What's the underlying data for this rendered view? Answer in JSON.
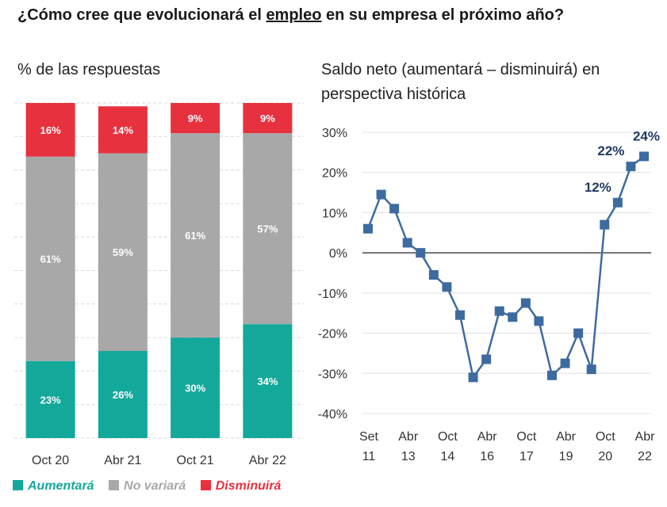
{
  "title": {
    "before": "¿Cómo cree que evolucionará el ",
    "underlined": "empleo",
    "after": " en su empresa el próximo año?"
  },
  "left_subtitle": "% de las respuestas",
  "right_subtitle_line1": "Saldo neto (aumentará – disminuirá) en",
  "right_subtitle_line2": "perspectiva histórica",
  "legend": [
    {
      "label": "Aumentará",
      "color": "#14a89a"
    },
    {
      "label": "No variará",
      "color": "#a8a8a8"
    },
    {
      "label": "Disminuirá",
      "color": "#e8313f"
    }
  ],
  "chart_data": [
    {
      "type": "bar",
      "stacked": true,
      "categories": [
        "Oct 20",
        "Abr 21",
        "Oct 21",
        "Abr 22"
      ],
      "series": [
        {
          "name": "Aumentará",
          "values": [
            23,
            26,
            30,
            34
          ],
          "labels": [
            "23%",
            "26%",
            "30%",
            "34%"
          ],
          "color": "#14a89a"
        },
        {
          "name": "No variará",
          "values": [
            61,
            59,
            61,
            57
          ],
          "labels": [
            "61%",
            "59%",
            "61%",
            "57%"
          ],
          "color": "#a8a8a8"
        },
        {
          "name": "Disminuirá",
          "values": [
            16,
            14,
            9,
            9
          ],
          "labels": [
            "16%",
            "14%",
            "9%",
            "9%"
          ],
          "color": "#e8313f"
        }
      ],
      "ylim": [
        0,
        100
      ],
      "grid": true
    },
    {
      "type": "line",
      "x_ticks": [
        {
          "l1": "Set",
          "l2": "11"
        },
        {
          "l1": "Abr",
          "l2": "13"
        },
        {
          "l1": "Oct",
          "l2": "14"
        },
        {
          "l1": "Abr",
          "l2": "16"
        },
        {
          "l1": "Oct",
          "l2": "17"
        },
        {
          "l1": "Abr",
          "l2": "19"
        },
        {
          "l1": "Oct",
          "l2": "20"
        },
        {
          "l1": "Abr",
          "l2": "22"
        }
      ],
      "y_ticks": [
        "30%",
        "20%",
        "10%",
        "0%",
        "-10%",
        "-20%",
        "-30%",
        "-40%"
      ],
      "ylim": [
        -40,
        30
      ],
      "values": [
        6,
        14.5,
        11,
        2.5,
        0,
        -5.5,
        -8.5,
        -15.5,
        -31,
        -26.5,
        -14.5,
        -16,
        -12.5,
        -17,
        -30.5,
        -27.5,
        -20,
        -29,
        7,
        12.5,
        21.5,
        24
      ],
      "annotations": [
        {
          "index": 19,
          "text": "12%"
        },
        {
          "index": 20,
          "text": "22%"
        },
        {
          "index": 21,
          "text": "24%"
        }
      ],
      "color": "#3d6b9f",
      "grid": true
    }
  ]
}
